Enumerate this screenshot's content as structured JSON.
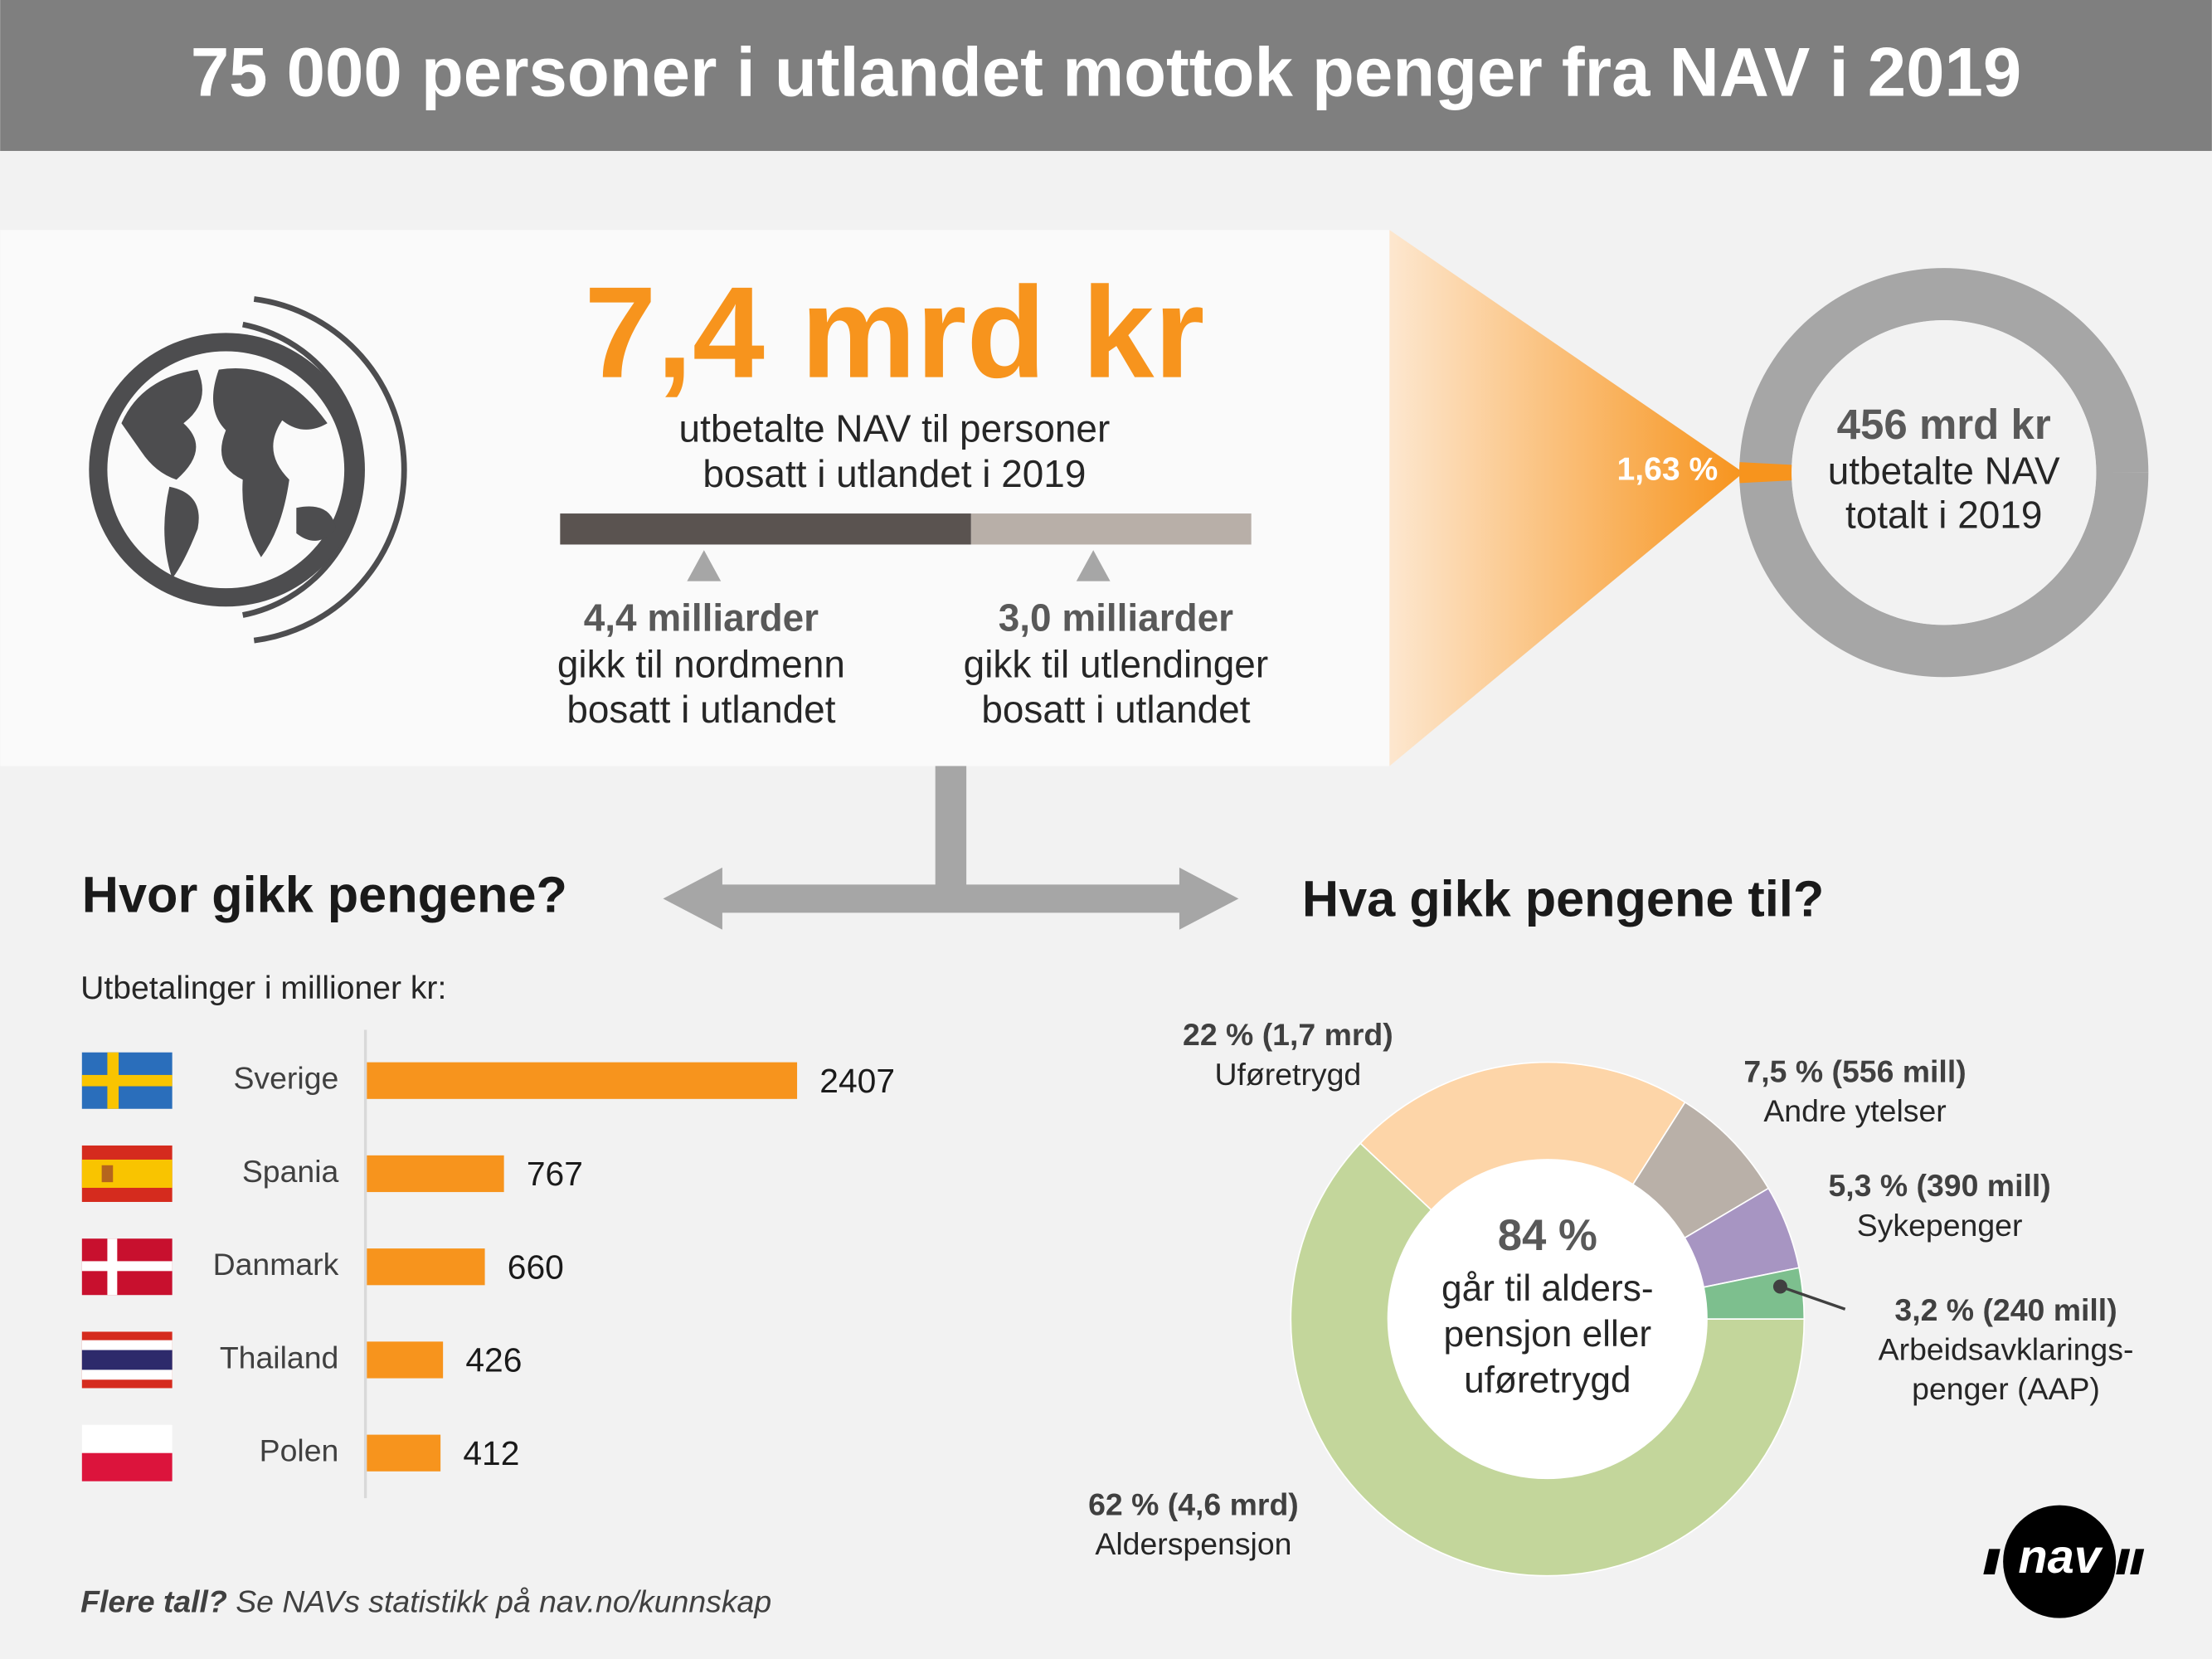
{
  "title": "75 000 personer i utlandet mottok penger fra NAV i 2019",
  "hero": {
    "amount": "7,4 mrd kr",
    "lines": [
      "utbetalte NAV til personer",
      "bosatt i utlandet i 2019"
    ],
    "split": [
      {
        "value": 4.4,
        "label": "4,4 milliarder",
        "lines": [
          "gikk til nordmenn",
          "bosatt i utlandet"
        ],
        "color": "#5a5350"
      },
      {
        "value": 3.0,
        "label": "3,0 milliarder",
        "lines": [
          "gikk til utlendinger",
          "bosatt i utlandet"
        ],
        "color": "#b8afa8"
      }
    ],
    "share": {
      "value": 1.63,
      "label": "1,63 %"
    },
    "total": {
      "heading": "456 mrd kr",
      "lines": [
        "utbetalte NAV",
        "totalt i 2019"
      ]
    }
  },
  "chart_data": [
    {
      "type": "bar",
      "orientation": "horizontal",
      "title": "Hvor gikk pengene?",
      "subtitle": "Utbetalinger i millioner kr:",
      "categories": [
        "Sverige",
        "Spania",
        "Danmark",
        "Thailand",
        "Polen"
      ],
      "values": [
        2407,
        767,
        660,
        426,
        412
      ],
      "color": "#f7941d"
    },
    {
      "type": "donut",
      "title": "Hva gikk pengene til?",
      "center_title": "84 %",
      "center_lines": [
        "går til alders-",
        "pensjon eller",
        "uføretrygd"
      ],
      "categories": [
        "Alderspensjon",
        "Uføretrygd",
        "Andre ytelser",
        "Sykepenger",
        "Arbeidsavklarings- penger (AAP)"
      ],
      "values": [
        62,
        22,
        7.5,
        5.3,
        3.2
      ],
      "value_labels": [
        "62 % (4,6 mrd)",
        "22 % (1,7 mrd)",
        "7,5 % (556 mill)",
        "5,3 % (390 mill)",
        "3,2 % (240 mill)"
      ],
      "colors": [
        "#c3d69b",
        "#fdd5a8",
        "#b9b0a8",
        "#a795c2",
        "#7dbf8e"
      ]
    }
  ],
  "footer": {
    "question": "Flere tall?",
    "text": " Se NAVs statistikk på nav.no/kunnskap"
  },
  "logo": "nav"
}
